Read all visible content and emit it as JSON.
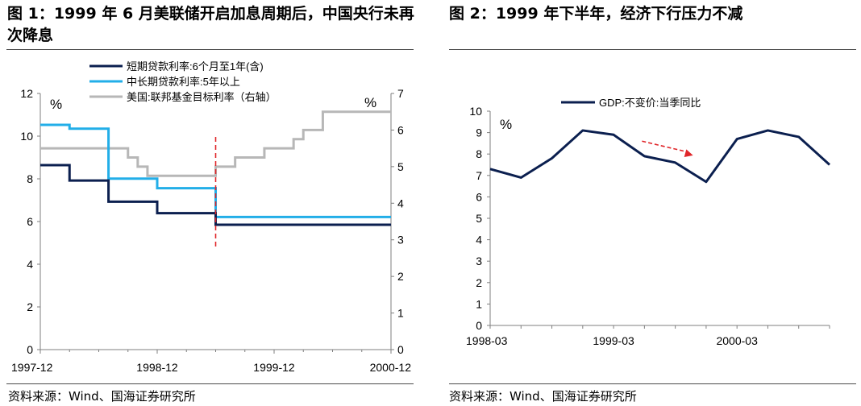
{
  "figures": {
    "left_title": "图 1：1999 年 6 月美联储开启加息周期后，中国央行未再次降息",
    "right_title": "图 2：1999 年下半年，经济下行压力不减",
    "left_source": "资料来源：Wind、国海证券研究所",
    "right_source": "资料来源：Wind、国海证券研究所"
  },
  "chart_data": [
    {
      "type": "line",
      "step": true,
      "x_range": [
        "1997-12",
        "2000-12"
      ],
      "x_ticks": [
        "1997-12",
        "1998-12",
        "1999-12",
        "2000-12"
      ],
      "y_left": {
        "range": [
          0,
          12
        ],
        "ticks": [
          "0",
          "2",
          "4",
          "6",
          "8",
          "10",
          "12"
        ],
        "unit": "%"
      },
      "y_right": {
        "range": [
          0,
          7
        ],
        "ticks": [
          "0",
          "1",
          "2",
          "3",
          "4",
          "5",
          "6",
          "7"
        ],
        "unit": "%"
      },
      "series": [
        {
          "name": "短期贷款利率:6个月至1年(含)",
          "axis": "left",
          "color": "#0b1f4f",
          "points": [
            [
              "1997-12",
              8.64
            ],
            [
              "1998-03",
              7.92
            ],
            [
              "1998-07",
              6.93
            ],
            [
              "1998-12",
              6.39
            ],
            [
              "1999-06",
              5.85
            ],
            [
              "2000-12",
              5.85
            ]
          ]
        },
        {
          "name": "中长期贷款利率:5年以上",
          "axis": "left",
          "color": "#22aee8",
          "points": [
            [
              "1997-12",
              10.53
            ],
            [
              "1998-03",
              10.35
            ],
            [
              "1998-07",
              8.01
            ],
            [
              "1998-12",
              7.56
            ],
            [
              "1999-06",
              6.21
            ],
            [
              "2000-12",
              6.21
            ]
          ]
        },
        {
          "name": "美国:联邦基金目标利率（右轴）",
          "axis": "right",
          "color": "#b7b7b7",
          "points": [
            [
              "1997-12",
              5.5
            ],
            [
              "1998-09",
              5.25
            ],
            [
              "1998-10",
              5.0
            ],
            [
              "1998-11",
              4.75
            ],
            [
              "1999-06",
              5.0
            ],
            [
              "1999-08",
              5.25
            ],
            [
              "1999-11",
              5.5
            ],
            [
              "2000-02",
              5.75
            ],
            [
              "2000-03",
              6.0
            ],
            [
              "2000-05",
              6.5
            ],
            [
              "2000-12",
              6.5
            ]
          ]
        }
      ],
      "marker": {
        "type": "vertical-dashed-line",
        "x": "1999-06",
        "color": "#e0262a"
      }
    },
    {
      "type": "line",
      "x_ticks": [
        "1998-03",
        "1999-03",
        "2000-03"
      ],
      "ylim": [
        0,
        10
      ],
      "y_ticks": [
        "0",
        "1",
        "2",
        "3",
        "4",
        "5",
        "6",
        "7",
        "8",
        "9",
        "10"
      ],
      "unit": "%",
      "legend": "top",
      "series": [
        {
          "name": "GDP:不变价:当季同比",
          "color": "#0b1f4f",
          "x": [
            "1998-03",
            "1998-06",
            "1998-09",
            "1998-12",
            "1999-03",
            "1999-06",
            "1999-09",
            "1999-12",
            "2000-03",
            "2000-06",
            "2000-09",
            "2000-12"
          ],
          "values": [
            7.3,
            6.9,
            7.8,
            9.1,
            8.9,
            7.9,
            7.6,
            6.7,
            8.7,
            9.1,
            8.8,
            7.5
          ]
        }
      ],
      "annotation": {
        "type": "dashed-arrow",
        "color": "#e0262a",
        "from": "1999-06",
        "to": "1999-09"
      }
    }
  ]
}
